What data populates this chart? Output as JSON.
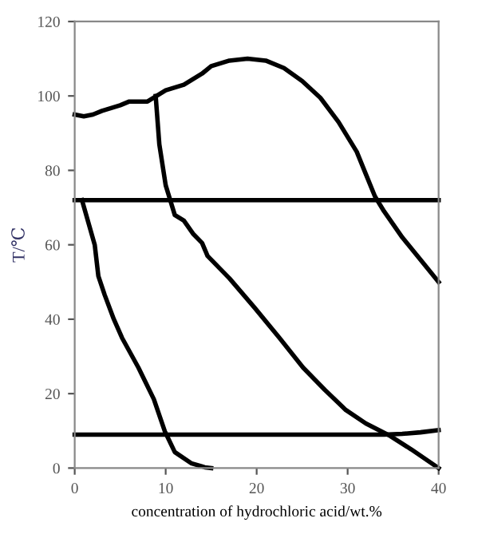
{
  "chart_data": {
    "type": "line",
    "xlabel": "concentration of hydrochloric acid/wt.%",
    "ylabel": "T/℃",
    "xlim": [
      0,
      40
    ],
    "xticks": [
      0,
      10,
      20,
      30,
      40
    ],
    "ylim": [
      0,
      120
    ],
    "yticks": [
      0,
      20,
      40,
      60,
      80,
      100,
      120
    ],
    "grid": false,
    "legend": false,
    "marker": "none",
    "line_style": "solid",
    "series": [
      {
        "color": "#000000",
        "x": [
          0,
          1,
          2,
          3,
          5,
          6,
          8,
          9,
          10,
          12,
          13,
          14,
          15,
          17,
          19,
          21,
          23,
          25,
          27,
          29,
          31,
          32,
          33,
          34,
          36,
          38,
          40
        ],
        "values": [
          95,
          94.5,
          95,
          96,
          97.5,
          98.5,
          98.5,
          100,
          101.5,
          103,
          104.5,
          106,
          108,
          109.5,
          110,
          109.5,
          107.5,
          104,
          99.5,
          93,
          85,
          79,
          73,
          69,
          62,
          56,
          50
        ]
      },
      {
        "color": "#000000",
        "x": [
          8.9,
          9.3,
          10,
          10.5,
          11,
          12,
          13,
          14,
          14.6,
          17,
          19.8,
          22.5,
          25.1,
          27.5,
          29.8,
          32,
          34.7,
          37,
          40
        ],
        "values": [
          100,
          87,
          76,
          72,
          68,
          66.5,
          63,
          60.5,
          57,
          51,
          43,
          35,
          27,
          21,
          15.6,
          12,
          8.6,
          5,
          0
        ]
      },
      {
        "color": "#000000",
        "x": [
          0.8,
          1.5,
          2.2,
          2.6,
          3.3,
          4.3,
          5.2,
          7,
          8.7,
          9.9,
          11,
          12.8,
          14.3,
          15
        ],
        "values": [
          72,
          66,
          60,
          51.6,
          46.5,
          40,
          35,
          27,
          18.5,
          9.9,
          4.3,
          1.3,
          0.2,
          0
        ]
      },
      {
        "color": "#000000",
        "x": [
          0,
          40
        ],
        "values": [
          72,
          72
        ]
      },
      {
        "color": "#000000",
        "x": [
          0,
          34,
          36,
          38,
          40
        ],
        "values": [
          9,
          9,
          9.2,
          9.6,
          10.2
        ]
      }
    ]
  }
}
